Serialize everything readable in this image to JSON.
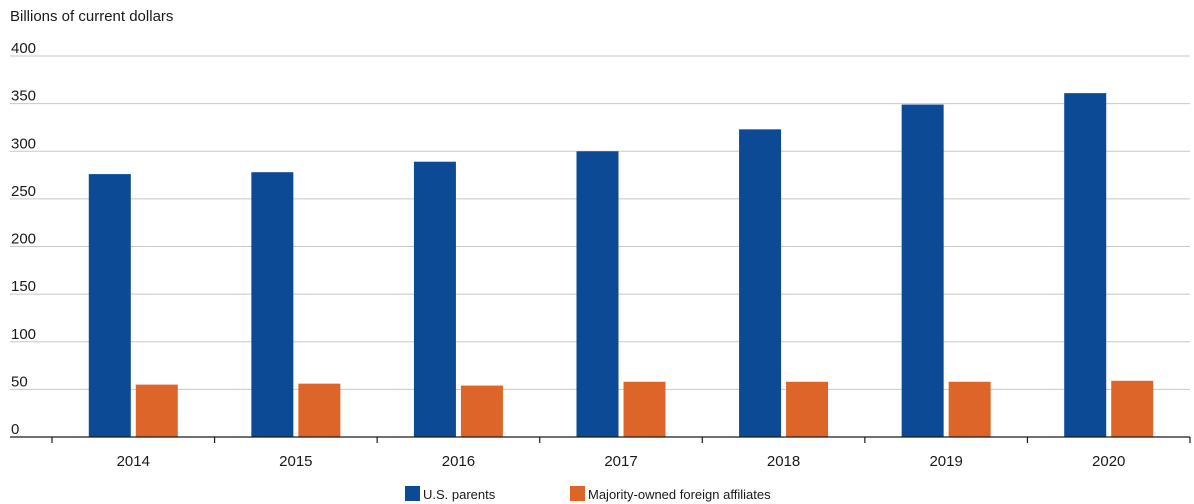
{
  "chart_data": {
    "type": "bar",
    "ylabel": "Billions of current dollars",
    "categories": [
      "2014",
      "2015",
      "2016",
      "2017",
      "2018",
      "2019",
      "2020"
    ],
    "series": [
      {
        "name": "U.S. parents",
        "color": "#0d4a96",
        "values": [
          276,
          278,
          289,
          300,
          323,
          349,
          361
        ]
      },
      {
        "name": "Majority-owned foreign affiliates",
        "color": "#dd6529",
        "values": [
          55,
          56,
          54,
          58,
          58,
          58,
          59
        ]
      }
    ],
    "ylim": [
      0,
      400
    ],
    "yticks": [
      0,
      50,
      100,
      150,
      200,
      250,
      300,
      350,
      400
    ],
    "grid": true,
    "legend": "bottom"
  }
}
